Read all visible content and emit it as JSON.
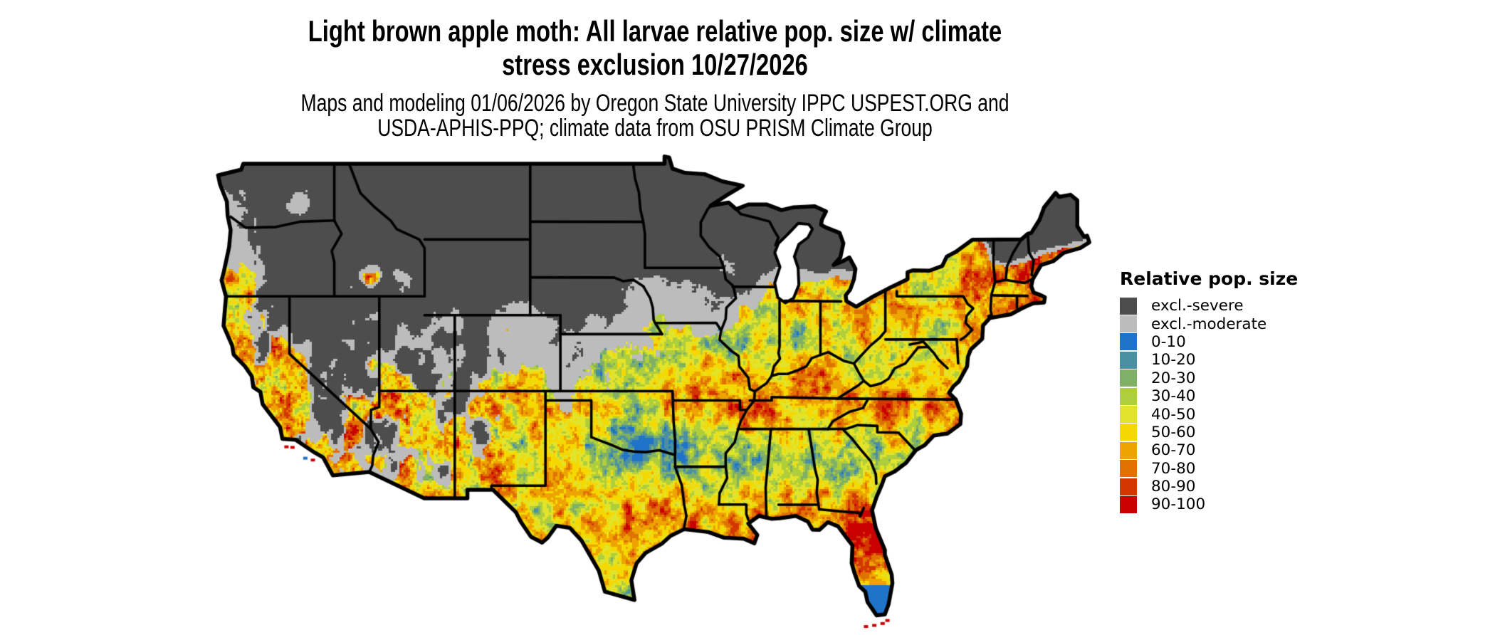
{
  "header": {
    "title_line1": "Light brown apple moth: All larvae relative pop. size w/ climate",
    "title_line2": "stress exclusion 10/27/2026",
    "subtitle_line1": "Maps and modeling 01/06/2026 by Oregon State University IPPC USPEST.ORG and",
    "subtitle_line2": "USDA-APHIS-PPQ; climate data from OSU PRISM Climate Group"
  },
  "map": {
    "region": "Contiguous United States",
    "kind": "raster relative population size map with state borders",
    "ocean_background": "#FFFFFF",
    "state_border_color": "#000000"
  },
  "legend": {
    "title": "Relative pop. size",
    "items": [
      {
        "label": "excl.-severe",
        "color": "#4D4D4D"
      },
      {
        "label": "excl.-moderate",
        "color": "#BCBCBC"
      },
      {
        "label": "0-10",
        "color": "#1F73C8"
      },
      {
        "label": "10-20",
        "color": "#4B90A2"
      },
      {
        "label": "20-30",
        "color": "#7FB066"
      },
      {
        "label": "30-40",
        "color": "#AFCE3B"
      },
      {
        "label": "40-50",
        "color": "#E2E32B"
      },
      {
        "label": "50-60",
        "color": "#F5D800"
      },
      {
        "label": "60-70",
        "color": "#EDA400"
      },
      {
        "label": "70-80",
        "color": "#E07200"
      },
      {
        "label": "80-90",
        "color": "#D43600"
      },
      {
        "label": "90-100",
        "color": "#C80000"
      }
    ]
  }
}
